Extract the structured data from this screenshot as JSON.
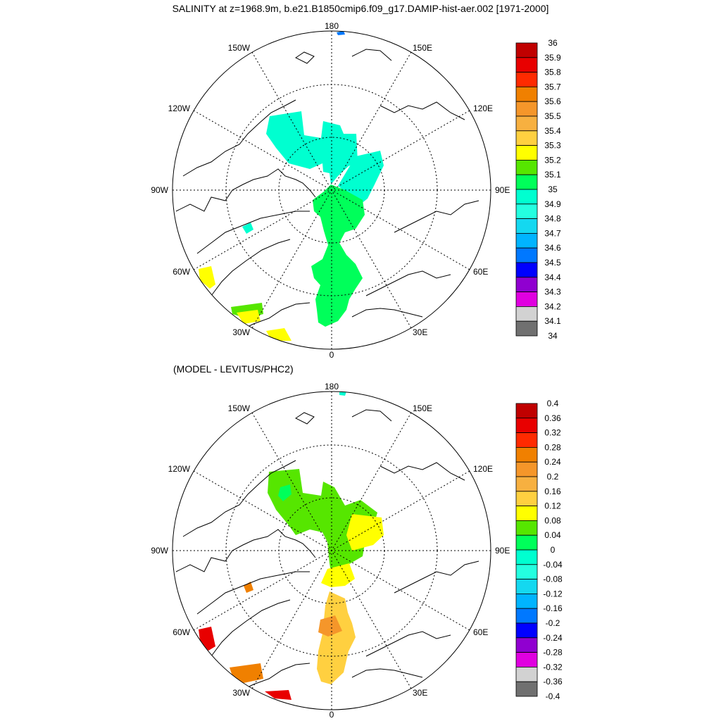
{
  "title": "SALINITY at z=1968.9m, b.e21.B1850cmip6.f09_g17.DAMIP-hist-aer.002 [1971-2000]",
  "subtitle": "(MODEL - LEVITUS/PHC2)",
  "longitude_labels": {
    "top": "180",
    "bottom": "0",
    "left": "90W",
    "right": "90E",
    "upper_left_1": "150W",
    "upper_left_2": "120W",
    "lower_left_1": "60W",
    "lower_left_2": "30W",
    "upper_right_1": "150E",
    "upper_right_2": "120E",
    "lower_right_1": "60E",
    "lower_right_2": "30E"
  },
  "colorbar_top": {
    "labels": [
      "36",
      "35.9",
      "35.8",
      "35.7",
      "35.6",
      "35.5",
      "35.4",
      "35.3",
      "35.2",
      "35.1",
      "35",
      "34.9",
      "34.8",
      "34.7",
      "34.6",
      "34.5",
      "34.4",
      "34.3",
      "34.2",
      "34.1",
      "34"
    ],
    "colors": [
      "#c00000",
      "#e80000",
      "#ff2a00",
      "#f08000",
      "#f5962a",
      "#f7b040",
      "#ffd040",
      "#ffff00",
      "#56e600",
      "#00ff5a",
      "#00ffd0",
      "#24ffe0",
      "#14d8f0",
      "#00b4ff",
      "#0078ff",
      "#0000ff",
      "#9000d0",
      "#e000e0",
      "#d2d2d2",
      "#707070"
    ]
  },
  "colorbar_bottom": {
    "labels": [
      "0.4",
      "0.36",
      "0.32",
      "0.28",
      "0.24",
      "0.2",
      "0.16",
      "0.12",
      "0.08",
      "0.04",
      "0",
      "-0.04",
      "-0.08",
      "-0.12",
      "-0.16",
      "-0.2",
      "-0.24",
      "-0.28",
      "-0.32",
      "-0.36",
      "-0.4"
    ],
    "colors": [
      "#c00000",
      "#e80000",
      "#ff2a00",
      "#f08000",
      "#f5962a",
      "#f7b040",
      "#ffd040",
      "#ffff00",
      "#56e600",
      "#00ff5a",
      "#00ffd0",
      "#24ffe0",
      "#14d8f0",
      "#00b4ff",
      "#0078ff",
      "#0000ff",
      "#9000d0",
      "#e000e0",
      "#d2d2d2",
      "#707070"
    ]
  },
  "fields": {
    "top": {
      "main_color": "#00ffd0",
      "secondary_color": "#00ff5a",
      "accent_color": "#ffff00"
    },
    "bottom": {
      "main_color": "#56e600",
      "secondary_color": "#ffff00",
      "accent_color": "#ffd040",
      "hot_color": "#e80000",
      "warm_color": "#f08000"
    }
  }
}
